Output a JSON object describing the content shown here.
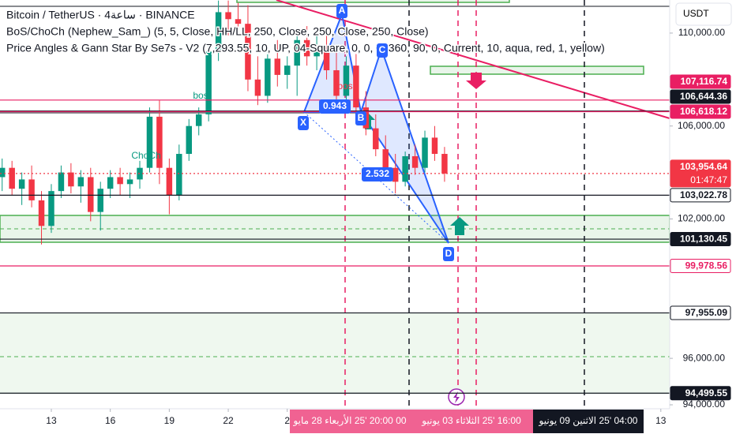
{
  "chart_data": {
    "type": "candlestick",
    "legend_lines": [
      "Bitcoin / TetherUS · 4ساعة · BINANCE",
      "BoS/ChoCh (Nephew_Sam_) (5, 5, Close, HH/LL, 250, Close, 250, Close, 250, Close)",
      "Price Angles & Gann Star By Se7s - V2 (7,293.55, 10, UP, 04-Square, 0, 0, 0, 360, 90, 0, Current, 10, aqua, red, 1, yellow)"
    ],
    "currency": "USDT",
    "up_color": "#089981",
    "down_color": "#f23645",
    "x": [
      10.5,
      11,
      11.5,
      12,
      12.5,
      13,
      13.5,
      14,
      14.5,
      15,
      15.5,
      16,
      16.5,
      17,
      17.5,
      18,
      18.5,
      19,
      19.5,
      20,
      20.5,
      21,
      21.5,
      22,
      22.5,
      23,
      23.5,
      24,
      24.5,
      25,
      25.5,
      26,
      26.5,
      27,
      27.5,
      28,
      28.5,
      29,
      29.5,
      30,
      30.5,
      31,
      31.5,
      32,
      32.5,
      33
    ],
    "open": [
      103800,
      104200,
      103300,
      103700,
      102800,
      101700,
      103200,
      104000,
      103400,
      103800,
      102300,
      103300,
      103800,
      103500,
      103700,
      104200,
      106400,
      104200,
      103000,
      104800,
      106000,
      106500,
      109200,
      110900,
      110600,
      110400,
      108000,
      107300,
      108900,
      108200,
      108600,
      109700,
      109000,
      109400,
      108400,
      107300,
      108600,
      106800,
      105900,
      105000,
      104200,
      103600,
      104700,
      104200,
      105500,
      104800
    ],
    "high": [
      104600,
      104500,
      104000,
      104300,
      103200,
      103500,
      104300,
      104400,
      104100,
      104200,
      103600,
      104100,
      104200,
      104000,
      104500,
      106800,
      107100,
      104600,
      105200,
      106300,
      106800,
      109500,
      111400,
      111400,
      111300,
      111200,
      109000,
      109200,
      109700,
      109000,
      110200,
      110300,
      110000,
      110100,
      109400,
      109000,
      109100,
      107500,
      106500,
      105600,
      104800,
      104900,
      105200,
      105800,
      106000,
      105100
    ],
    "low": [
      103200,
      103000,
      102600,
      102500,
      100900,
      101400,
      102900,
      103100,
      102700,
      101900,
      101500,
      102900,
      103000,
      102900,
      103300,
      104000,
      103500,
      102200,
      102800,
      104500,
      105600,
      106200,
      108800,
      109900,
      110000,
      107500,
      106900,
      107000,
      107700,
      107600,
      107300,
      108600,
      108400,
      108000,
      106900,
      107000,
      106300,
      105600,
      104700,
      103800,
      103100,
      103400,
      103900,
      104000,
      104500,
      103600
    ],
    "close": [
      104200,
      103300,
      103700,
      102800,
      101700,
      103200,
      104000,
      103400,
      103800,
      102300,
      103300,
      103800,
      103500,
      103700,
      104200,
      106400,
      104200,
      103000,
      104800,
      106000,
      106500,
      109200,
      110900,
      110600,
      110400,
      108000,
      107300,
      108900,
      108200,
      108600,
      109700,
      109000,
      109400,
      108400,
      107300,
      108600,
      106800,
      105900,
      105000,
      104200,
      103600,
      104700,
      104200,
      105500,
      104800,
      103954.64
    ],
    "xlim": [
      10.39,
      44.45
    ],
    "xticks": [
      13,
      16,
      19,
      22,
      {
        "value": 25,
        "label": "2"
      },
      {
        "value": 44,
        "label": "13"
      }
    ],
    "ylim": [
      93830,
      111424
    ],
    "yticks": [
      {
        "value": 94000,
        "label": "94,000.00"
      },
      {
        "value": 96000,
        "label": "96,000.00"
      },
      {
        "value": 102000,
        "label": "102,000.00"
      },
      {
        "value": 106000,
        "label": "106,000.00"
      },
      {
        "value": 110000,
        "label": "110,000.00"
      }
    ],
    "price_lines": [
      {
        "value": 107116.74,
        "label": "107,116.74",
        "color": "#e91e63",
        "style": "filled"
      },
      {
        "value": 106644.36,
        "label": "106,644.36",
        "color": "#131722",
        "style": "filled"
      },
      {
        "value": 106618.12,
        "label": "106,618.12",
        "color": "#e91e63",
        "style": "filled"
      },
      {
        "value": 103954.64,
        "label": "103,954.64",
        "color": "#f23645",
        "style": "filled",
        "countdown": "01:47:47"
      },
      {
        "value": 103022.78,
        "label": "103,022.78",
        "color": "#131722",
        "style": "outline"
      },
      {
        "value": 101130.45,
        "label": "101,130.45",
        "color": "#131722",
        "style": "filled"
      },
      {
        "value": 99978.56,
        "label": "99,978.56",
        "color": "#e91e63",
        "style": "outline"
      },
      {
        "value": 97955.09,
        "label": "97,955.09",
        "color": "#131722",
        "style": "outline"
      },
      {
        "value": 94499.55,
        "label": "94,499.55",
        "color": "#131722",
        "style": "filled"
      }
    ],
    "annotations": [
      "A",
      "B",
      "C",
      "D",
      "X",
      "0.943",
      "2.532",
      "bos",
      "ChoCh",
      "bos"
    ],
    "time_labels": [
      "00 20:00 '25 الأربعاء 28 مايو",
      "16:00 '25 الثلاثاء 03 يونيو",
      "04:00 '25 الاثنين 09 يونيو"
    ]
  }
}
